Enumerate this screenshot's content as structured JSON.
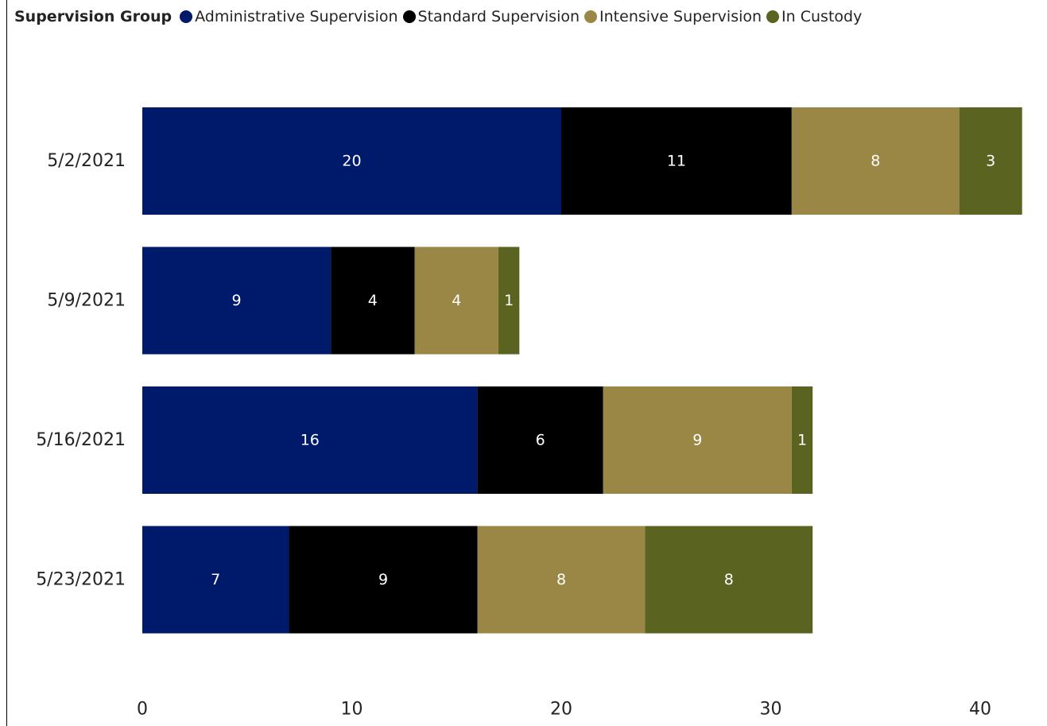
{
  "legend": {
    "title": "Supervision Group"
  },
  "chart_data": {
    "type": "bar",
    "orientation": "horizontal",
    "stacked": true,
    "categories": [
      "5/2/2021",
      "5/9/2021",
      "5/16/2021",
      "5/23/2021"
    ],
    "series": [
      {
        "name": "Administrative Supervision",
        "color": "#001A6B",
        "values": [
          20,
          9,
          16,
          7
        ]
      },
      {
        "name": "Standard Supervision",
        "color": "#000000",
        "values": [
          11,
          4,
          6,
          9
        ]
      },
      {
        "name": "Intensive Supervision",
        "color": "#9A8745",
        "values": [
          8,
          4,
          9,
          8
        ]
      },
      {
        "name": "In Custody",
        "color": "#5A6320",
        "values": [
          3,
          1,
          1,
          8
        ]
      }
    ],
    "xlim": [
      0,
      42
    ],
    "xticks": [
      0,
      10,
      20,
      30,
      40
    ],
    "grid": false,
    "legend_position": "top-left",
    "data_labels": true
  }
}
